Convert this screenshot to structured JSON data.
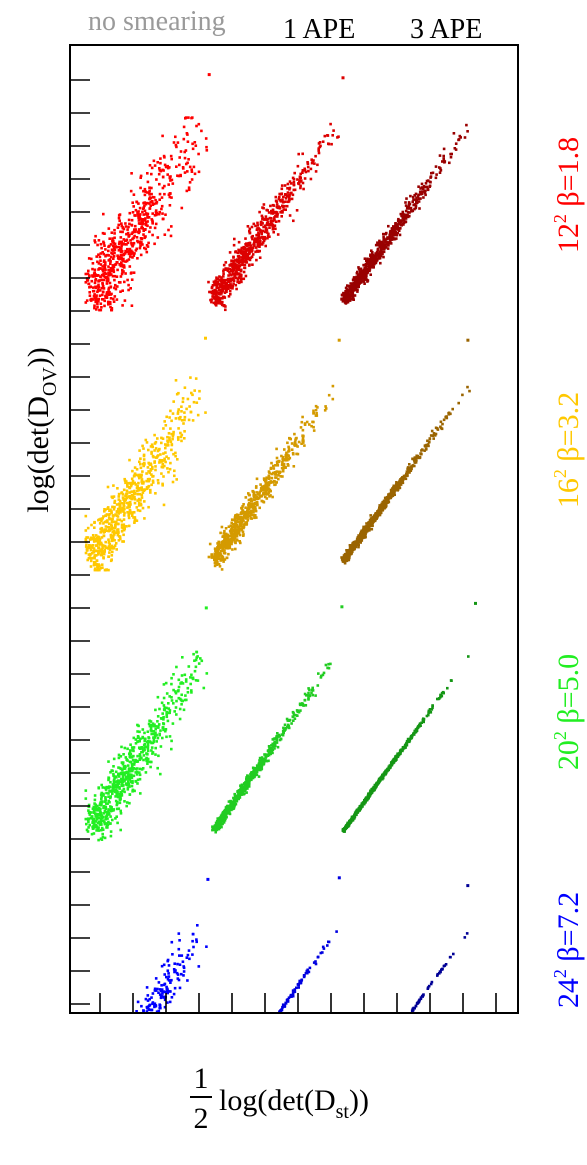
{
  "chart_data": {
    "type": "scatter",
    "title": "",
    "xlabel": {
      "fraction_num": "1",
      "fraction_den": "2",
      "main": "log(det(D",
      "sub": "st",
      "close": "))"
    },
    "ylabel": {
      "main": "log(det(D",
      "sub": "OV",
      "close": "))"
    },
    "column_headers": [
      {
        "label": "no smearing",
        "color": "#9a9a9a"
      },
      {
        "label": "1 APE",
        "color": "#000000"
      },
      {
        "label": "3 APE",
        "color": "#000000"
      }
    ],
    "rows": [
      {
        "label_base": "12",
        "label_sup": "2",
        "label_rest": " β=1.8",
        "colors": [
          "#ff0000",
          "#dd0000",
          "#990000"
        ],
        "spread": [
          0.55,
          0.25,
          0.12
        ],
        "outlier": [
          true,
          true,
          false
        ]
      },
      {
        "label_base": "16",
        "label_sup": "2",
        "label_rest": " β=3.2",
        "colors": [
          "#ffc800",
          "#d49a00",
          "#9a6400"
        ],
        "spread": [
          0.45,
          0.18,
          0.06
        ],
        "outlier": [
          true,
          true,
          true
        ]
      },
      {
        "label_base": "20",
        "label_sup": "2",
        "label_rest": " β=5.0",
        "colors": [
          "#22ee22",
          "#22cc22",
          "#149614"
        ],
        "spread": [
          0.4,
          0.07,
          0.025
        ],
        "outlier": [
          true,
          true,
          true
        ]
      },
      {
        "label_base": "24",
        "label_sup": "2",
        "label_rest": " β=7.2",
        "colors": [
          "#0000ff",
          "#0000e0",
          "#000096"
        ],
        "spread": [
          0.35,
          0.035,
          0.015
        ],
        "outlier": [
          true,
          true,
          true
        ]
      }
    ],
    "points_per_cluster": 650,
    "grid": false,
    "legend": "none"
  }
}
